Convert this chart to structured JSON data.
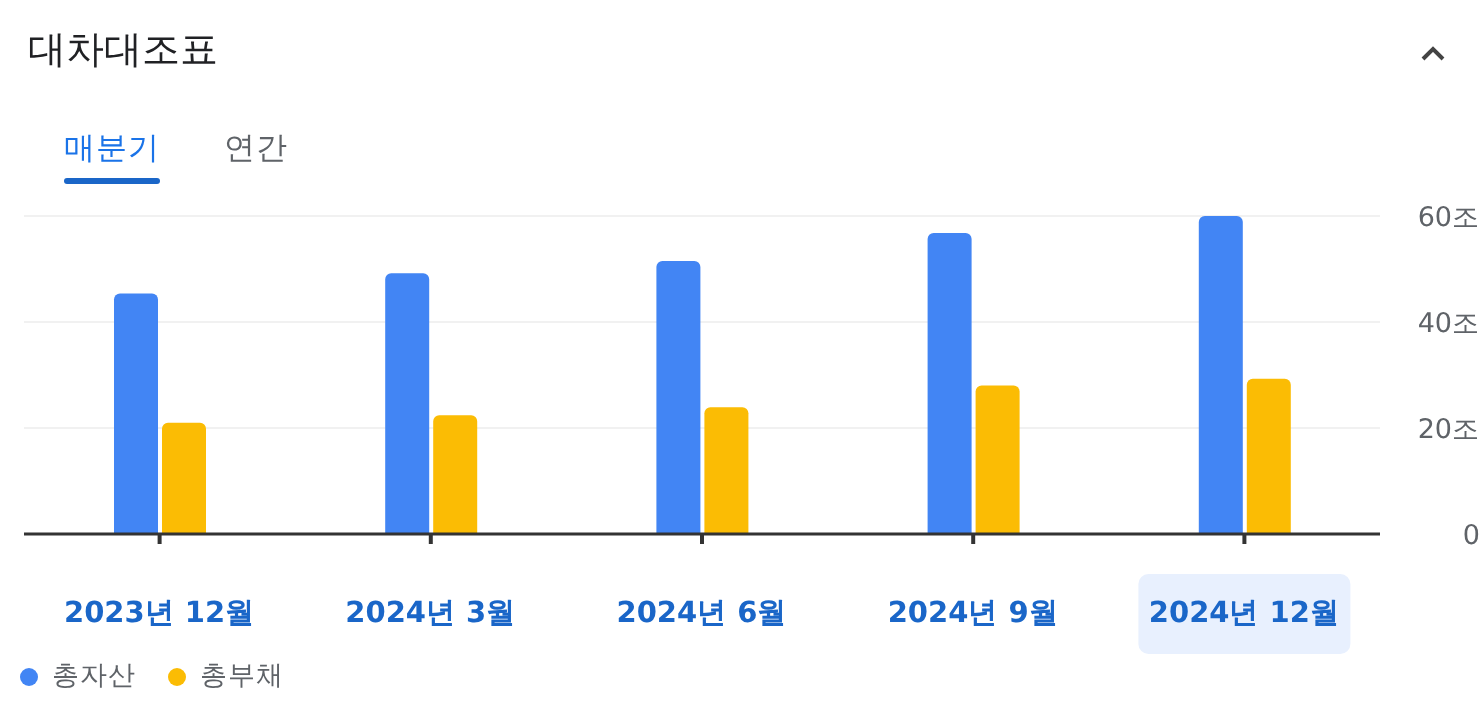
{
  "chart_data": {
    "type": "bar",
    "title": "대차대조표",
    "annotations": [
      "매분기",
      "연간"
    ],
    "categories": [
      "2023년 12월",
      "2024년 3월",
      "2024년 6월",
      "2024년 9월",
      "2024년 12월"
    ],
    "series": [
      {
        "name": "총자산",
        "color": "#4285f4",
        "values": [
          45.4,
          49.2,
          51.5,
          56.8,
          60.0
        ]
      },
      {
        "name": "총부채",
        "color": "#fbbc04",
        "values": [
          21.0,
          22.4,
          23.9,
          28.0,
          29.3
        ]
      }
    ],
    "ylim": [
      0,
      60
    ],
    "yticks": [
      0,
      {
        "value": 20,
        "label": "20조"
      },
      {
        "value": 40,
        "label": "40조"
      },
      {
        "value": 60,
        "label": "60조"
      }
    ],
    "grid": "y",
    "legend": "bottom left"
  }
}
